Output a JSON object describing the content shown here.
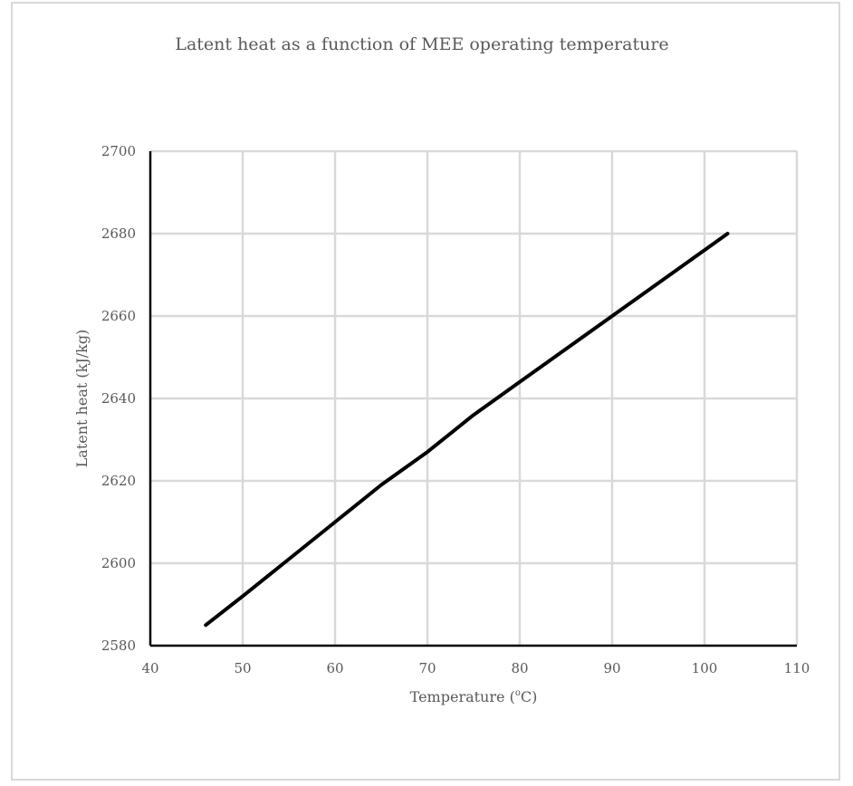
{
  "chart_data": {
    "type": "line",
    "title": "Latent heat as a function of MEE operating temperature",
    "xlabel": "Temperature (",
    "xlabel_sup": "o",
    "xlabel_suffix": "C)",
    "ylabel": "Latent heat (kJ/kg)",
    "xlim": [
      40,
      110
    ],
    "ylim": [
      2580,
      2700
    ],
    "x_ticks": [
      40,
      50,
      60,
      70,
      80,
      90,
      100,
      110
    ],
    "y_ticks": [
      2580,
      2600,
      2620,
      2640,
      2660,
      2680,
      2700
    ],
    "grid": true,
    "series": [
      {
        "color": "#000000",
        "x": [
          46,
          50,
          55,
          60,
          65,
          70,
          75,
          80,
          85,
          90,
          95,
          100,
          102.5
        ],
        "y": [
          2585,
          2592,
          2601,
          2610,
          2619,
          2627,
          2636,
          2644,
          2652,
          2660,
          2668,
          2676,
          2680
        ]
      }
    ]
  }
}
